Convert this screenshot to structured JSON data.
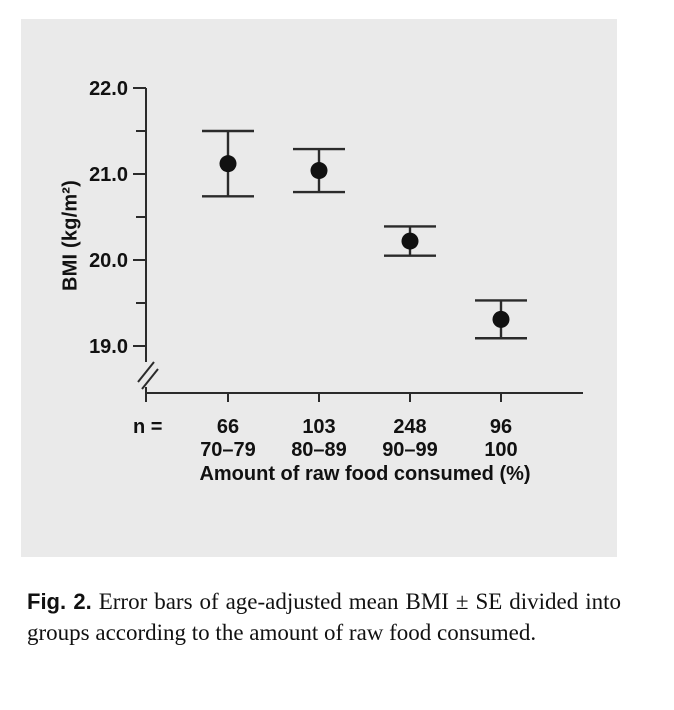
{
  "chart_data": {
    "type": "scatter",
    "subtype": "errorbar",
    "title": "",
    "xlabel": "Amount of raw food consumed (%)",
    "ylabel": "BMI (kg/m²)",
    "ylim": [
      19.0,
      22.0
    ],
    "axis_break_below": 19.0,
    "yticks": [
      22.0,
      21.0,
      20.0,
      19.0
    ],
    "ytick_labels": [
      "22.0",
      "21.0",
      "20.0",
      "19.0"
    ],
    "yticks_minor": [
      21.5,
      20.5,
      19.5
    ],
    "grid": false,
    "n_prefix": "n =",
    "categories": [
      "70–79",
      "80–89",
      "90–99",
      "100"
    ],
    "series": [
      {
        "name": "age-adjusted mean BMI ± SE",
        "points": [
          {
            "category": "70–79",
            "n": "66",
            "mean": 21.12,
            "se": 0.38
          },
          {
            "category": "80–89",
            "n": "103",
            "mean": 21.04,
            "se": 0.25
          },
          {
            "category": "90–99",
            "n": "248",
            "mean": 20.22,
            "se": 0.17
          },
          {
            "category": "100",
            "n": "96",
            "mean": 19.31,
            "se": 0.22
          }
        ]
      }
    ],
    "marker": "filled-circle",
    "colors": {
      "panel_bg": "#eaeaea",
      "axis": "#2b2b2b",
      "marker": "#111111",
      "text": "#111111"
    }
  },
  "caption": {
    "label": "Fig. 2.",
    "text": "Error bars of age-adjusted mean BMI ± SE divided into groups according to the amount of raw food consumed."
  }
}
